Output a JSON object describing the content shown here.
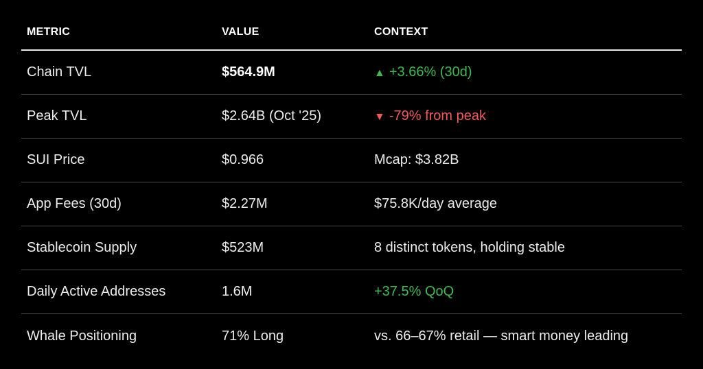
{
  "headers": {
    "metric": "METRIC",
    "value": "VALUE",
    "context": "CONTEXT"
  },
  "rows": [
    {
      "metric": "Chain TVL",
      "value": "$564.9M",
      "context": "+3.66% (30d)",
      "trend": "up",
      "context_icon": "triangle-up-icon",
      "value_bold": true
    },
    {
      "metric": "Peak TVL",
      "value": "$2.64B (Oct '25)",
      "context": "-79% from peak",
      "trend": "down",
      "context_icon": "triangle-down-icon"
    },
    {
      "metric": "SUI Price",
      "value": "$0.966",
      "context": "Mcap: $3.82B",
      "trend": "neutral"
    },
    {
      "metric": "App Fees (30d)",
      "value": "$2.27M",
      "context": "$75.8K/day average",
      "trend": "neutral"
    },
    {
      "metric": "Stablecoin Supply",
      "value": "$523M",
      "context": "8 distinct tokens, holding stable",
      "trend": "neutral"
    },
    {
      "metric": "Daily Active Addresses",
      "value": "1.6M",
      "context": "+37.5% QoQ",
      "trend": "up"
    },
    {
      "metric": "Whale Positioning",
      "value": "71% Long",
      "context": "vs. 66–67% retail — smart money leading",
      "trend": "neutral"
    }
  ],
  "colors": {
    "background": "#000000",
    "up": "#3fb950",
    "down": "#f05a5a",
    "text": "#ececec"
  }
}
